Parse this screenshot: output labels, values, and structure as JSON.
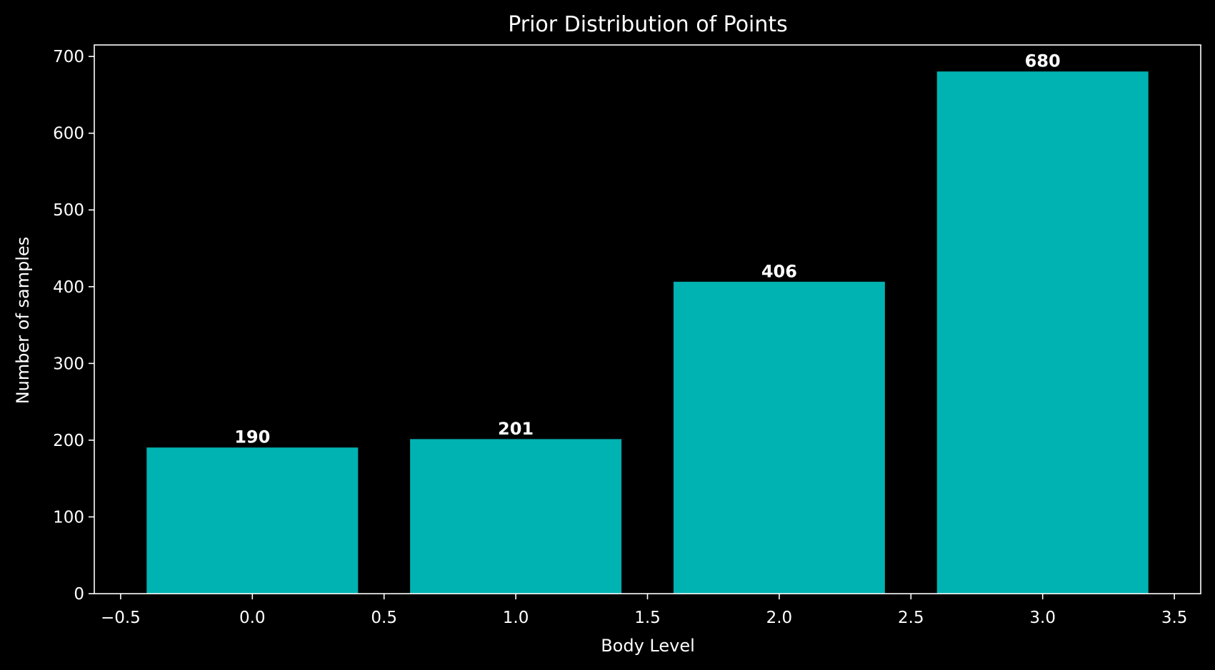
{
  "chart_data": {
    "type": "bar",
    "title": "Prior Distribution of Points",
    "xlabel": "Body Level",
    "ylabel": "Number of samples",
    "x": [
      0,
      1,
      2,
      3
    ],
    "values": [
      190,
      201,
      406,
      680
    ],
    "bar_width": 0.8,
    "xlim": [
      -0.6,
      3.6
    ],
    "ylim": [
      0,
      715
    ],
    "xticks": [
      -0.5,
      0.0,
      0.5,
      1.0,
      1.5,
      2.0,
      2.5,
      3.0,
      3.5
    ],
    "xtick_labels": [
      "−0.5",
      "0.0",
      "0.5",
      "1.0",
      "1.5",
      "2.0",
      "2.5",
      "3.0",
      "3.5"
    ],
    "yticks": [
      0,
      100,
      200,
      300,
      400,
      500,
      600,
      700
    ],
    "ytick_labels": [
      "0",
      "100",
      "200",
      "300",
      "400",
      "500",
      "600",
      "700"
    ],
    "data_labels": [
      "190",
      "201",
      "406",
      "680"
    ],
    "bar_color": "#00b3b3",
    "background_color": "#000000",
    "axis_color": "#ffffff",
    "grid": false
  }
}
